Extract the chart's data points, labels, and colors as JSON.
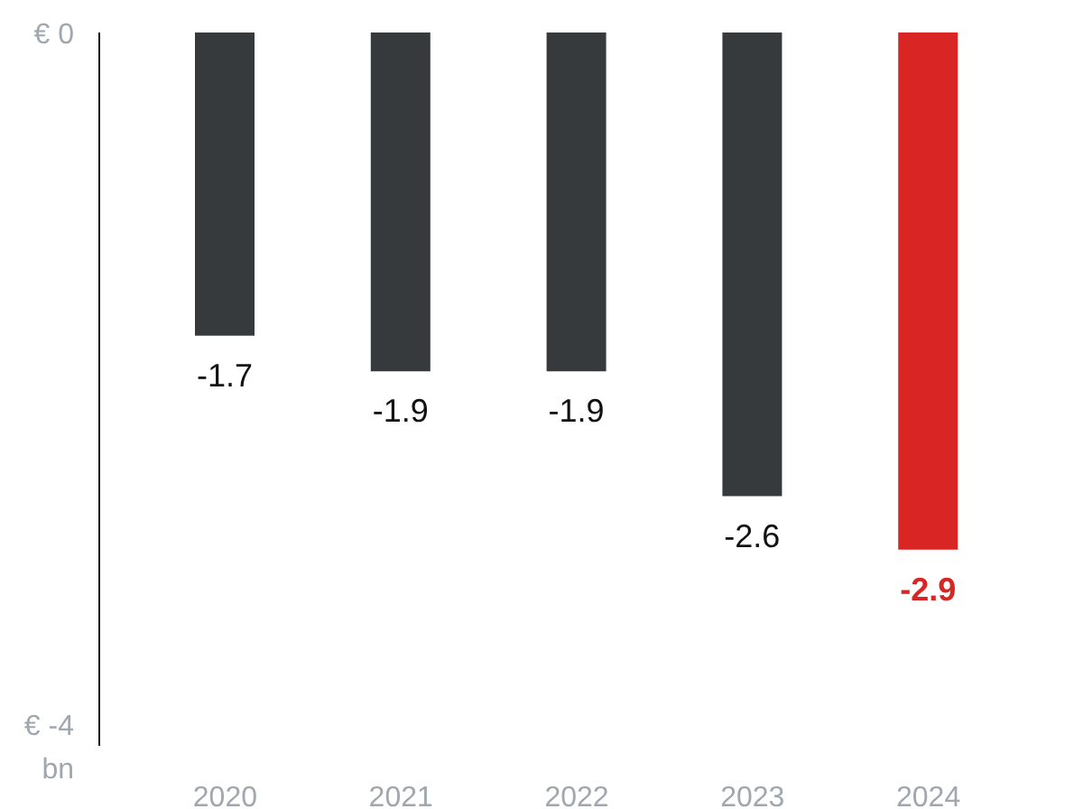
{
  "chart_data": {
    "type": "bar",
    "categories": [
      "2020",
      "2021",
      "2022",
      "2023",
      "2024"
    ],
    "values": [
      -1.7,
      -1.9,
      -1.9,
      -2.6,
      -2.9
    ],
    "colors": [
      "#363a3d",
      "#363a3d",
      "#363a3d",
      "#363a3d",
      "#d92523"
    ],
    "ylim": [
      -4,
      0
    ],
    "yticks": [
      {
        "value": 0,
        "label": "€ 0"
      },
      {
        "value": -4,
        "label": "€ -4 bn"
      }
    ],
    "data_labels": true
  }
}
